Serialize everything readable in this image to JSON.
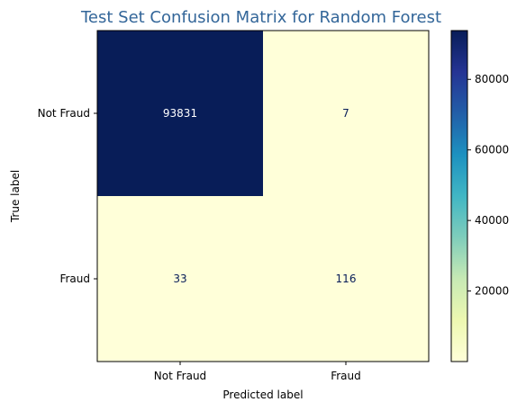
{
  "chart_data": {
    "type": "heatmap",
    "title": "Test Set Confusion Matrix for Random Forest",
    "title_color": "#336699",
    "xlabel": "Predicted label",
    "ylabel": "True label",
    "x_categories": [
      "Not Fraud",
      "Fraud"
    ],
    "y_categories": [
      "Not Fraud",
      "Fraud"
    ],
    "values": [
      [
        93831,
        7
      ],
      [
        33,
        116
      ]
    ],
    "colormap": "YlGnBu",
    "colorbar": {
      "min": 7,
      "max": 93831,
      "ticks": [
        20000,
        40000,
        60000,
        80000
      ],
      "tick_labels": [
        "20000",
        "40000",
        "60000",
        "80000"
      ]
    },
    "text_color_dark_cell": "#ffffff",
    "text_color_light_cell": "#081d58",
    "grid": false
  }
}
